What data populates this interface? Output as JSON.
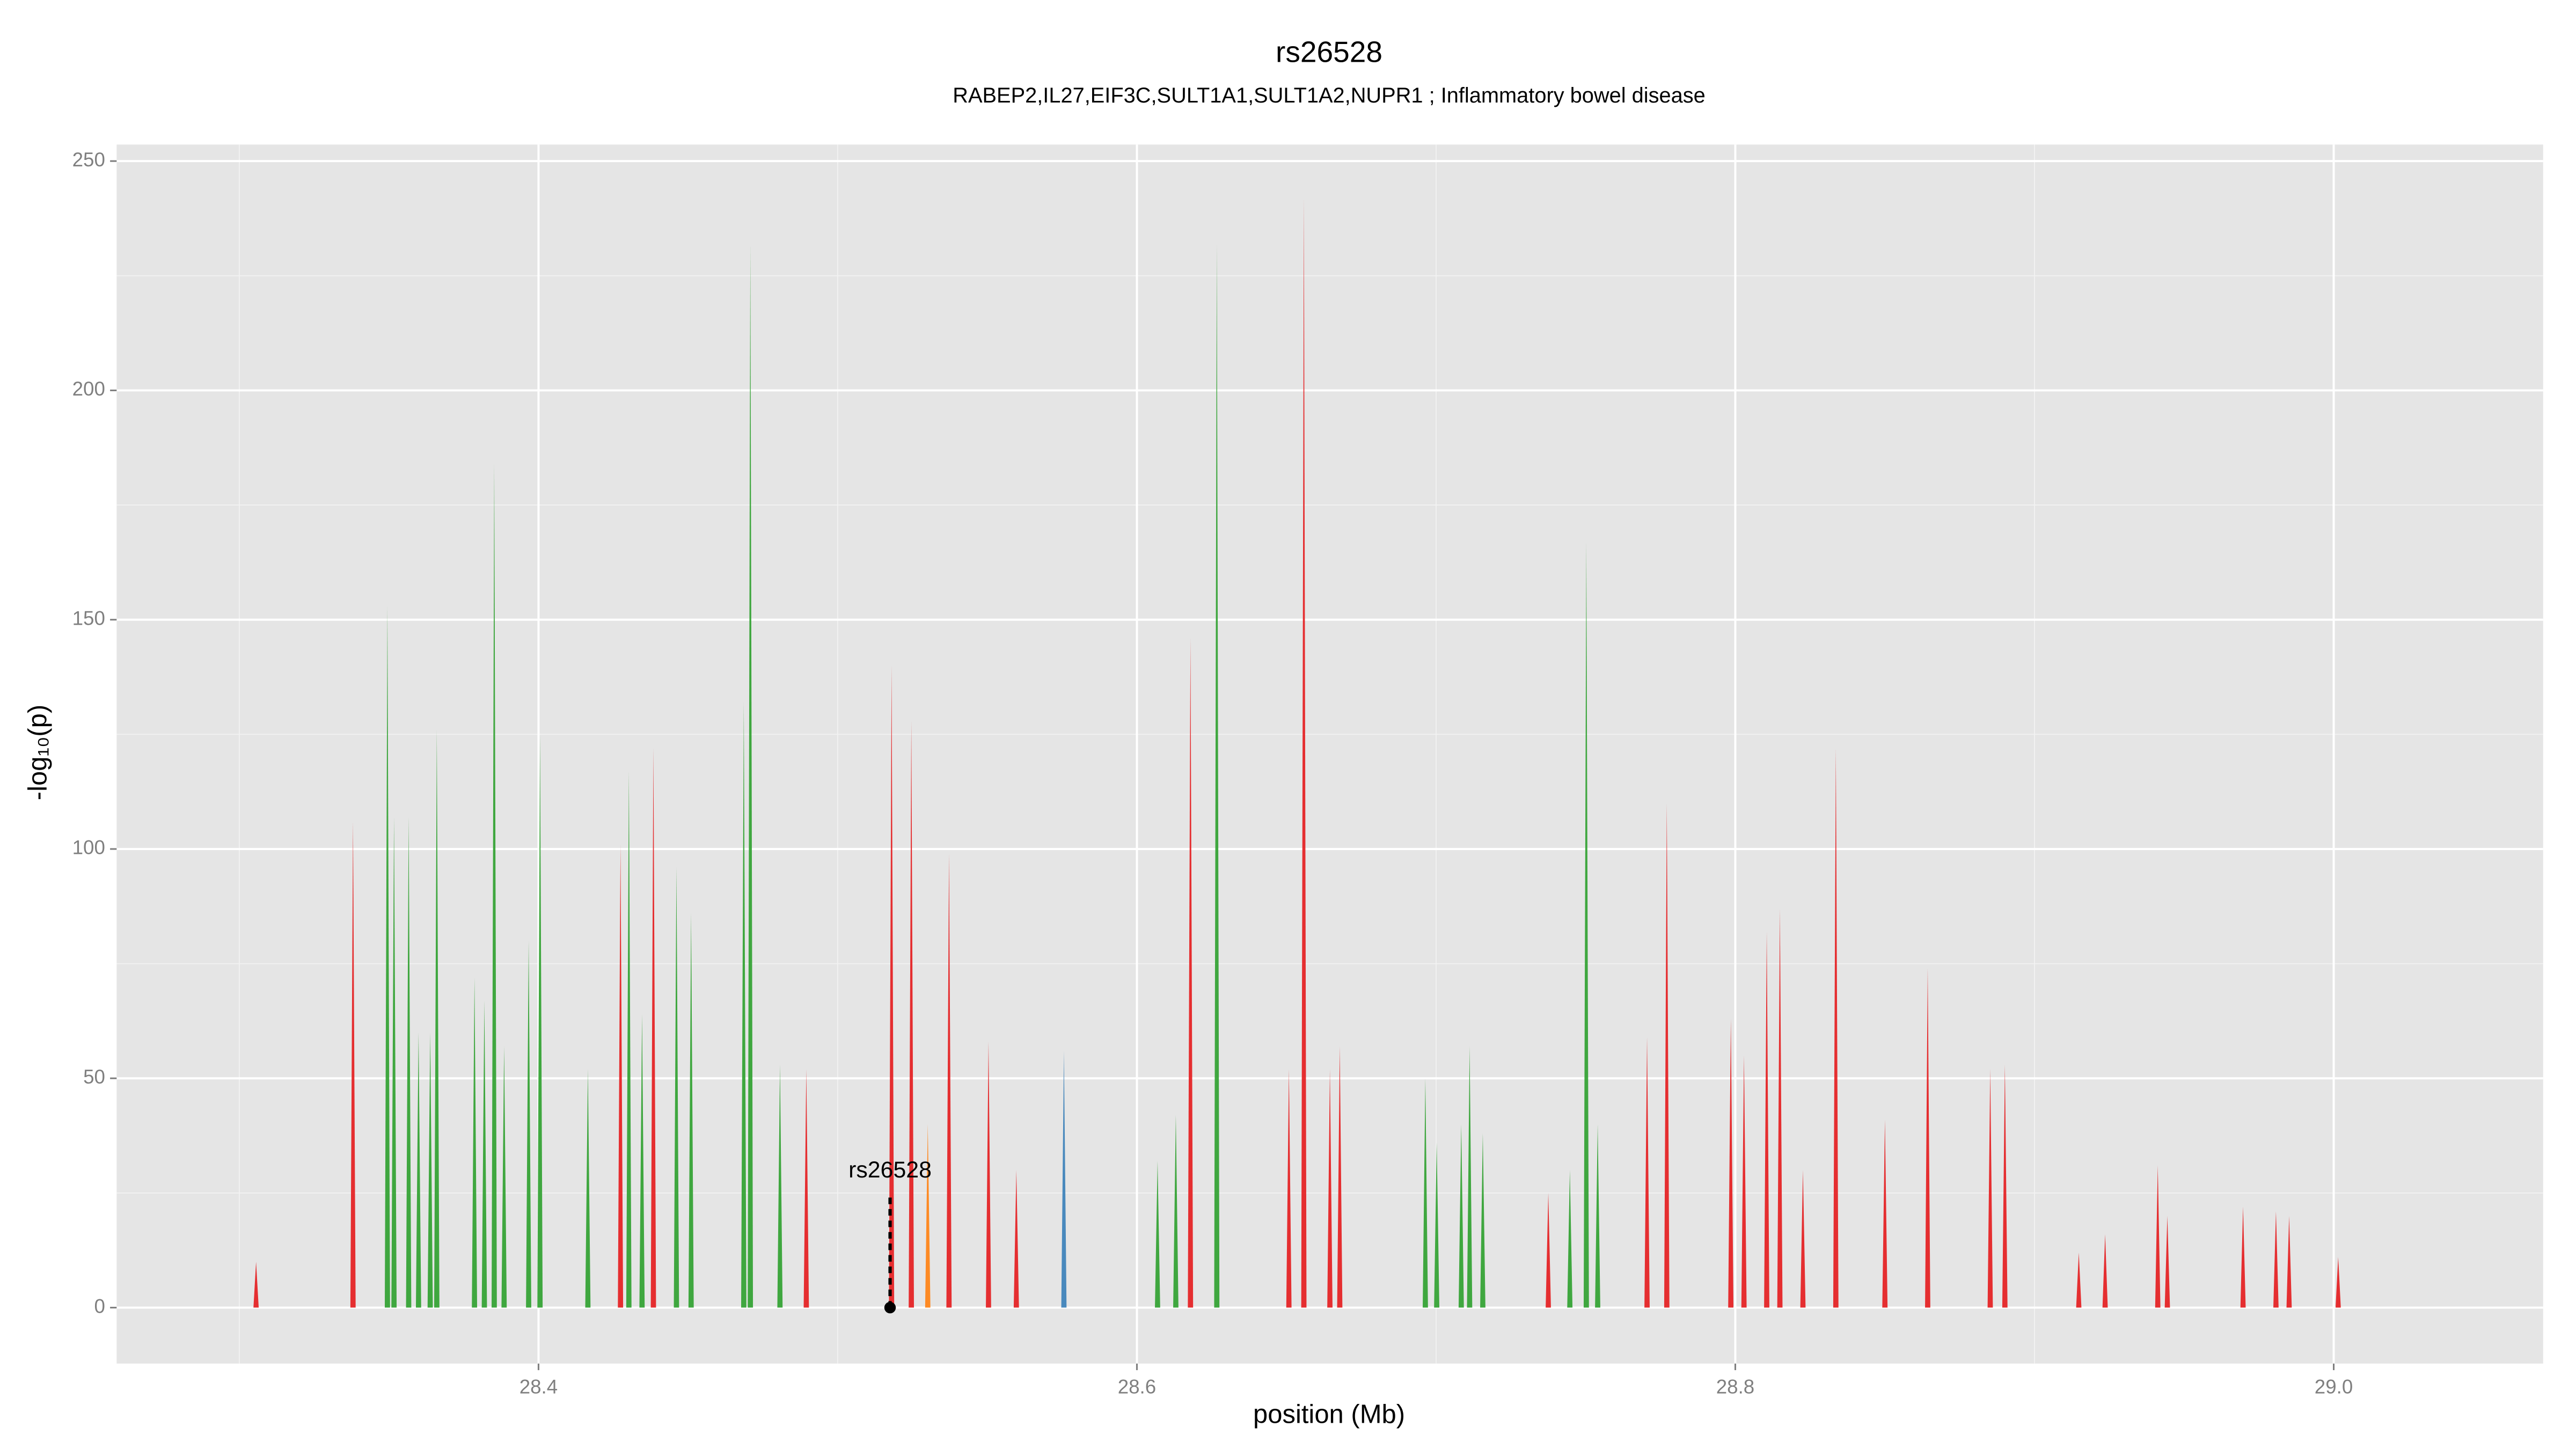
{
  "chart_data": {
    "type": "spike",
    "title": "rs26528",
    "subtitle": "RABEP2,IL27,EIF3C,SULT1A1,SULT1A2,NUPR1 ; Inflammatory bowel disease",
    "x_label": "position (Mb)",
    "y_label": "-log₁₀(p)",
    "xlim": [
      28.259,
      29.07
    ],
    "ylim": [
      -12.2,
      253.6
    ],
    "xticks": [
      28.4,
      28.6,
      28.8,
      {
        "value": 29.0,
        "label": "29.0"
      }
    ],
    "xminor": [
      28.3,
      28.5,
      28.7,
      28.9
    ],
    "yticks": [
      0,
      50,
      100,
      150,
      200,
      250
    ],
    "yminor": [
      25,
      75,
      125,
      175,
      225
    ],
    "grid": true,
    "series": [
      {
        "color": "#2ca02c",
        "x": [
          28.3495,
          28.3517,
          28.3566,
          28.3599,
          28.3638,
          28.366,
          28.3786,
          28.3819,
          28.3852,
          28.3885,
          28.3967,
          28.4005,
          28.4165,
          28.4302,
          28.4346,
          28.4461,
          28.451,
          28.4686,
          28.4708,
          28.4807,
          28.6069,
          28.613,
          28.6267,
          28.6964,
          28.7002,
          28.7084,
          28.7112,
          28.7156,
          28.7447,
          28.7502,
          28.754
        ],
        "values": [
          153,
          107,
          107,
          60,
          60,
          126,
          72,
          67,
          184,
          57,
          80,
          125,
          52,
          117,
          64,
          96,
          86,
          132,
          232,
          53,
          32,
          42,
          232,
          50,
          36,
          40,
          57,
          38,
          30,
          167,
          40
        ]
      },
      {
        "color": "#e41a1c",
        "x": [
          28.3056,
          28.338,
          28.4274,
          28.4384,
          28.4895,
          28.518,
          28.5246,
          28.5372,
          28.5504,
          28.5597,
          28.6179,
          28.6508,
          28.6558,
          28.6645,
          28.6678,
          28.7375,
          28.7705,
          28.7771,
          28.7985,
          28.8029,
          28.8105,
          28.8149,
          28.8226,
          28.8336,
          28.85,
          28.8643,
          28.8852,
          28.8901,
          28.9148,
          28.9236,
          28.9412,
          28.9444,
          28.9697,
          28.9807,
          28.9851,
          29.0015
        ],
        "values": [
          10,
          106,
          101,
          122,
          52,
          140,
          128,
          99,
          58,
          30,
          146,
          52,
          242,
          52,
          57,
          25,
          59,
          110,
          63,
          55,
          82,
          87,
          30,
          122,
          41,
          74,
          52,
          53,
          12,
          16,
          31,
          20,
          22,
          21,
          20,
          11
        ]
      },
      {
        "color": "#ff7f0e",
        "x": [
          28.5301
        ],
        "values": [
          40
        ]
      },
      {
        "color": "#377eb8",
        "x": [
          28.5756
        ],
        "values": [
          56
        ]
      }
    ],
    "annotation": {
      "text": "rs26528",
      "x": 28.5175,
      "y": 0
    }
  }
}
